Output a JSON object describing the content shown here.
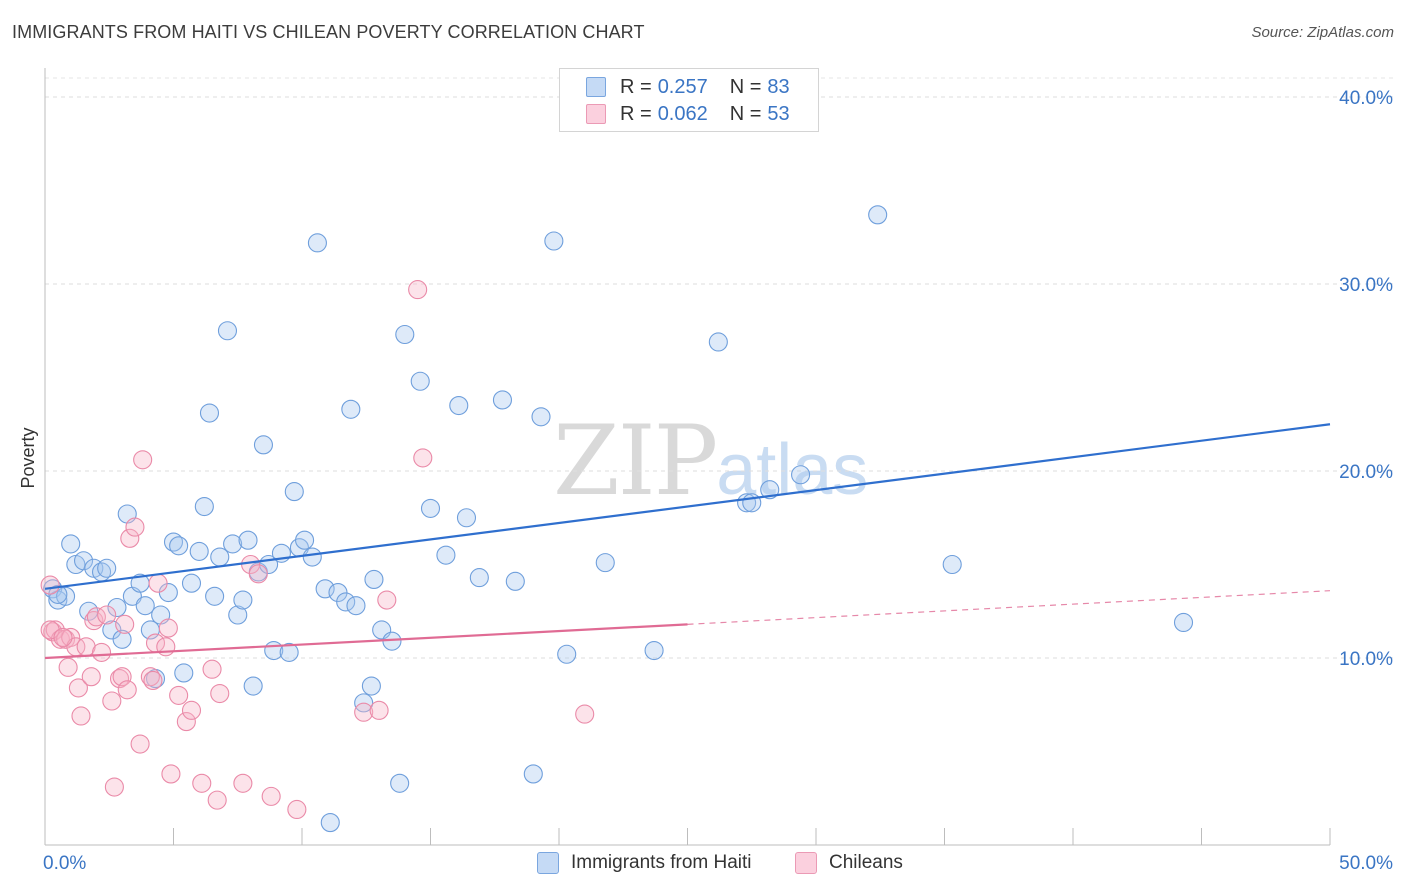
{
  "title": "IMMIGRANTS FROM HAITI VS CHILEAN POVERTY CORRELATION CHART",
  "source": "Source: ZipAtlas.com",
  "watermark": {
    "zip": "ZIP",
    "atlas": "atlas"
  },
  "legend": {
    "r_label": "R =",
    "n_label": "N =",
    "series": [
      {
        "name": "Immigrants from Haiti",
        "r": "0.257",
        "n": "83",
        "color": "#a8c8ef",
        "stroke": "#6f9fdc"
      },
      {
        "name": "Chileans",
        "r": "0.062",
        "n": "53",
        "color": "#f7b6c9",
        "stroke": "#ea8aa8"
      }
    ]
  },
  "chart_data": {
    "type": "scatter",
    "title": "IMMIGRANTS FROM HAITI VS CHILEAN POVERTY CORRELATION CHART",
    "xlabel": "",
    "ylabel": "Poverty",
    "xlim": [
      0,
      50
    ],
    "ylim": [
      0,
      40
    ],
    "x_tick_labels": [
      "0.0%",
      "50.0%"
    ],
    "y_ticks": [
      10,
      20,
      30,
      40
    ],
    "y_tick_labels": [
      "10.0%",
      "20.0%",
      "30.0%",
      "40.0%"
    ],
    "grid": true,
    "legend_position": "top-center",
    "series": [
      {
        "name": "Immigrants from Haiti",
        "color": "#6f9fdc",
        "trend": {
          "x": [
            0,
            50
          ],
          "y": [
            13.7,
            22.5
          ],
          "style": "solid",
          "color": "#2f6fce"
        },
        "points": [
          [
            0.3,
            13.7
          ],
          [
            0.5,
            13.1
          ],
          [
            0.8,
            13.3
          ],
          [
            1.0,
            16.1
          ],
          [
            1.2,
            15.0
          ],
          [
            1.5,
            15.2
          ],
          [
            1.7,
            12.5
          ],
          [
            1.9,
            14.8
          ],
          [
            2.2,
            14.6
          ],
          [
            2.4,
            14.8
          ],
          [
            2.6,
            11.5
          ],
          [
            2.8,
            12.7
          ],
          [
            3.0,
            11.0
          ],
          [
            3.2,
            17.7
          ],
          [
            3.4,
            13.3
          ],
          [
            3.7,
            14.0
          ],
          [
            3.9,
            12.8
          ],
          [
            4.1,
            11.5
          ],
          [
            4.3,
            8.9
          ],
          [
            4.5,
            12.3
          ],
          [
            4.8,
            13.5
          ],
          [
            5.0,
            16.2
          ],
          [
            5.2,
            16.0
          ],
          [
            5.4,
            9.2
          ],
          [
            5.7,
            14.0
          ],
          [
            6.0,
            15.7
          ],
          [
            6.2,
            18.1
          ],
          [
            6.4,
            23.1
          ],
          [
            6.6,
            13.3
          ],
          [
            6.8,
            15.4
          ],
          [
            7.1,
            27.5
          ],
          [
            7.3,
            16.1
          ],
          [
            7.5,
            12.3
          ],
          [
            7.7,
            13.1
          ],
          [
            7.9,
            16.3
          ],
          [
            8.1,
            8.5
          ],
          [
            8.3,
            14.6
          ],
          [
            8.5,
            21.4
          ],
          [
            8.7,
            15.0
          ],
          [
            8.9,
            10.4
          ],
          [
            9.2,
            15.6
          ],
          [
            9.5,
            10.3
          ],
          [
            9.7,
            18.9
          ],
          [
            9.9,
            15.9
          ],
          [
            10.1,
            16.3
          ],
          [
            10.4,
            15.4
          ],
          [
            10.6,
            32.2
          ],
          [
            10.9,
            13.7
          ],
          [
            11.1,
            1.2
          ],
          [
            11.4,
            13.5
          ],
          [
            11.7,
            13.0
          ],
          [
            11.9,
            23.3
          ],
          [
            12.1,
            12.8
          ],
          [
            12.4,
            7.6
          ],
          [
            12.7,
            8.5
          ],
          [
            12.8,
            14.2
          ],
          [
            13.1,
            11.5
          ],
          [
            13.5,
            10.9
          ],
          [
            13.8,
            3.3
          ],
          [
            14.0,
            27.3
          ],
          [
            14.6,
            24.8
          ],
          [
            15.0,
            18.0
          ],
          [
            15.6,
            15.5
          ],
          [
            16.1,
            23.5
          ],
          [
            16.4,
            17.5
          ],
          [
            16.9,
            14.3
          ],
          [
            17.8,
            23.8
          ],
          [
            18.3,
            14.1
          ],
          [
            19.0,
            3.8
          ],
          [
            19.3,
            22.9
          ],
          [
            19.8,
            32.3
          ],
          [
            20.3,
            10.2
          ],
          [
            21.8,
            15.1
          ],
          [
            23.7,
            10.4
          ],
          [
            26.2,
            26.9
          ],
          [
            27.3,
            18.3
          ],
          [
            27.5,
            18.3
          ],
          [
            28.2,
            19.0
          ],
          [
            29.4,
            19.8
          ],
          [
            32.4,
            33.7
          ],
          [
            35.3,
            15.0
          ],
          [
            44.3,
            11.9
          ],
          [
            0.5,
            13.4
          ]
        ]
      },
      {
        "name": "Chileans",
        "color": "#ea8aa8",
        "trend": {
          "x": [
            0,
            25
          ],
          "y": [
            10.0,
            11.8
          ],
          "style": "solid",
          "color": "#e06b94",
          "extension": {
            "x": [
              25,
              50
            ],
            "y": [
              11.8,
              13.6
            ],
            "style": "dashed"
          }
        },
        "points": [
          [
            0.2,
            13.9
          ],
          [
            0.3,
            11.4
          ],
          [
            0.4,
            11.5
          ],
          [
            0.6,
            11.0
          ],
          [
            0.8,
            11.0
          ],
          [
            0.9,
            9.5
          ],
          [
            1.0,
            11.1
          ],
          [
            1.2,
            10.6
          ],
          [
            1.3,
            8.4
          ],
          [
            1.4,
            6.9
          ],
          [
            1.6,
            10.6
          ],
          [
            1.8,
            9.0
          ],
          [
            1.9,
            12.0
          ],
          [
            2.0,
            12.2
          ],
          [
            2.2,
            10.3
          ],
          [
            2.4,
            12.3
          ],
          [
            2.6,
            7.7
          ],
          [
            2.7,
            3.1
          ],
          [
            2.9,
            8.9
          ],
          [
            3.0,
            9.0
          ],
          [
            3.1,
            11.8
          ],
          [
            3.2,
            8.3
          ],
          [
            3.3,
            16.4
          ],
          [
            3.5,
            17.0
          ],
          [
            3.7,
            5.4
          ],
          [
            3.8,
            20.6
          ],
          [
            4.1,
            9.0
          ],
          [
            4.2,
            8.8
          ],
          [
            4.3,
            10.8
          ],
          [
            4.4,
            14.0
          ],
          [
            4.7,
            10.6
          ],
          [
            4.8,
            11.6
          ],
          [
            4.9,
            3.8
          ],
          [
            5.2,
            8.0
          ],
          [
            5.5,
            6.6
          ],
          [
            5.7,
            7.2
          ],
          [
            6.1,
            3.3
          ],
          [
            6.5,
            9.4
          ],
          [
            6.7,
            2.4
          ],
          [
            6.8,
            8.1
          ],
          [
            7.7,
            3.3
          ],
          [
            8.0,
            15.0
          ],
          [
            8.3,
            14.5
          ],
          [
            8.8,
            2.6
          ],
          [
            9.8,
            1.9
          ],
          [
            12.4,
            7.1
          ],
          [
            13.0,
            7.2
          ],
          [
            13.3,
            13.1
          ],
          [
            14.5,
            29.7
          ],
          [
            14.7,
            20.7
          ],
          [
            21.0,
            7.0
          ],
          [
            0.2,
            11.5
          ],
          [
            0.7,
            11.1
          ]
        ]
      }
    ]
  }
}
